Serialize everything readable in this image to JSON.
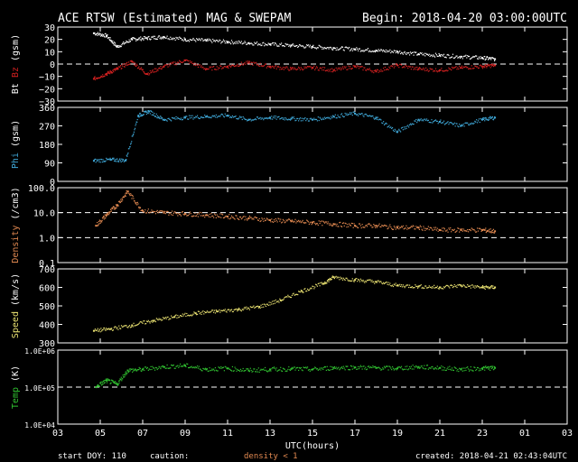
{
  "header": {
    "title": "ACE RTSW (Estimated) MAG & SWEPAM",
    "begin": "Begin: 2018-04-20 03:00:00UTC"
  },
  "footer": {
    "start_doy": "start DOY: 110",
    "caution": "caution:",
    "density_note": "density < 1",
    "created": "created: 2018-04-21 02:43:04UTC"
  },
  "colors": {
    "bt": "#ffffff",
    "bz": "#d22020",
    "phi": "#3fa8d8",
    "density": "#e08850",
    "speed": "#e8e070",
    "temp": "#30c030",
    "axis": "#ffffff",
    "background": "#000000"
  },
  "chart_data": {
    "type": "scatter",
    "xlabel": "UTC(hours)",
    "x_ticks": [
      "03",
      "05",
      "07",
      "09",
      "11",
      "13",
      "15",
      "17",
      "19",
      "21",
      "23",
      "01",
      "03"
    ],
    "xlim": [
      3,
      27
    ],
    "panels": [
      {
        "id": "mag",
        "ylabel_parts": [
          "Bt",
          "Bz",
          "(gsm)"
        ],
        "ylim": [
          -30,
          30
        ],
        "y_ticks": [
          "30",
          "20",
          "10",
          "0",
          "−10",
          "−20",
          "−30"
        ],
        "y_tick_values": [
          30,
          20,
          10,
          0,
          -10,
          -20,
          -30
        ],
        "scale": "linear",
        "dashed_at": [
          0
        ],
        "series": [
          {
            "name": "Bt",
            "x": [
              4.7,
              5.3,
              5.8,
              6.5,
              7.2,
              8,
              9,
              10,
              11,
              12,
              13,
              14,
              15,
              16,
              17,
              18,
              19,
              20,
              21,
              22,
              23,
              23.6
            ],
            "y": [
              25,
              23,
              14,
              20,
              21,
              22,
              20,
              19,
              18,
              17,
              16,
              15,
              14,
              13,
              12,
              11,
              10,
              8,
              7,
              6,
              5,
              4
            ]
          },
          {
            "name": "Bz",
            "x": [
              4.7,
              5.3,
              5.8,
              6.5,
              7.2,
              8,
              9,
              10,
              11,
              12,
              13,
              14,
              15,
              16,
              17,
              18,
              19,
              20,
              21,
              22,
              23,
              23.6
            ],
            "y": [
              -12,
              -8,
              -4,
              2,
              -8,
              -2,
              3,
              -4,
              -2,
              1,
              -2,
              -4,
              -3,
              -5,
              -2,
              -6,
              -1,
              -4,
              -5,
              -3,
              -2,
              -1
            ]
          }
        ]
      },
      {
        "id": "phi",
        "ylabel_parts": [
          "Phi",
          "(gsm)"
        ],
        "ylim": [
          0,
          360
        ],
        "y_ticks": [
          "360",
          "270",
          "180",
          "90",
          "0"
        ],
        "y_tick_values": [
          360,
          270,
          180,
          90,
          0
        ],
        "scale": "linear",
        "dashed_at": [],
        "series": [
          {
            "name": "Phi",
            "x": [
              4.7,
              5.5,
              6.2,
              6.8,
              7.3,
              8,
              9,
              10,
              11,
              12,
              13,
              14,
              15,
              16,
              17,
              18,
              19,
              20,
              21,
              22,
              23,
              23.6
            ],
            "y": [
              100,
              105,
              102,
              320,
              340,
              300,
              310,
              315,
              320,
              300,
              310,
              305,
              300,
              315,
              330,
              310,
              240,
              300,
              290,
              270,
              300,
              310
            ]
          }
        ]
      },
      {
        "id": "density",
        "ylabel_parts": [
          "Density",
          "(/cm3)"
        ],
        "ylim": [
          0.1,
          100
        ],
        "y_ticks": [
          "100.0",
          "10.0",
          "1.0",
          "0.1"
        ],
        "y_tick_values": [
          100,
          10,
          1,
          0.1
        ],
        "scale": "log",
        "dashed_at": [
          10,
          1
        ],
        "series": [
          {
            "name": "Density",
            "x": [
              4.8,
              5.3,
              5.8,
              6.3,
              7,
              8,
              9,
              10,
              11,
              12,
              13,
              14,
              15,
              16,
              17,
              18,
              19,
              20,
              21,
              22,
              23,
              23.6
            ],
            "y": [
              3,
              8,
              20,
              70,
              12,
              10,
              9,
              8,
              7,
              6,
              5,
              4.5,
              4,
              3.5,
              3,
              3,
              2.5,
              2.5,
              2,
              2,
              2,
              1.8
            ]
          }
        ]
      },
      {
        "id": "speed",
        "ylabel_parts": [
          "Speed",
          "(km/s)"
        ],
        "ylim": [
          300,
          700
        ],
        "y_ticks": [
          "700",
          "600",
          "500",
          "400",
          "300"
        ],
        "y_tick_values": [
          700,
          600,
          500,
          400,
          300
        ],
        "scale": "linear",
        "dashed_at": [],
        "series": [
          {
            "name": "Speed",
            "x": [
              4.7,
              5.5,
              6.5,
              7.5,
              8.5,
              9.5,
              10.5,
              11.5,
              12.5,
              13.5,
              14.5,
              15.5,
              16,
              17,
              18,
              19,
              20,
              21,
              22,
              23,
              23.6
            ],
            "y": [
              365,
              375,
              395,
              420,
              440,
              460,
              470,
              480,
              495,
              530,
              580,
              620,
              655,
              640,
              630,
              610,
              605,
              600,
              610,
              600,
              600
            ]
          }
        ]
      },
      {
        "id": "temp",
        "ylabel_parts": [
          "Temp",
          "(K)"
        ],
        "ylim": [
          10000,
          1000000
        ],
        "y_ticks": [
          "1.0E+06",
          "1.0E+05",
          "1.0E+04"
        ],
        "y_tick_values": [
          1000000,
          100000,
          10000
        ],
        "scale": "log",
        "dashed_at": [
          100000
        ],
        "series": [
          {
            "name": "Temp",
            "x": [
              4.8,
              5.3,
              5.8,
              6.3,
              7,
              8,
              9,
              10,
              11,
              12,
              13,
              14,
              15,
              16,
              17,
              18,
              19,
              20,
              21,
              22,
              23,
              23.6
            ],
            "y": [
              100000,
              150000,
              120000,
              280000,
              300000,
              350000,
              380000,
              300000,
              320000,
              280000,
              300000,
              310000,
              300000,
              330000,
              340000,
              330000,
              320000,
              350000,
              330000,
              300000,
              320000,
              330000
            ]
          }
        ]
      }
    ]
  }
}
